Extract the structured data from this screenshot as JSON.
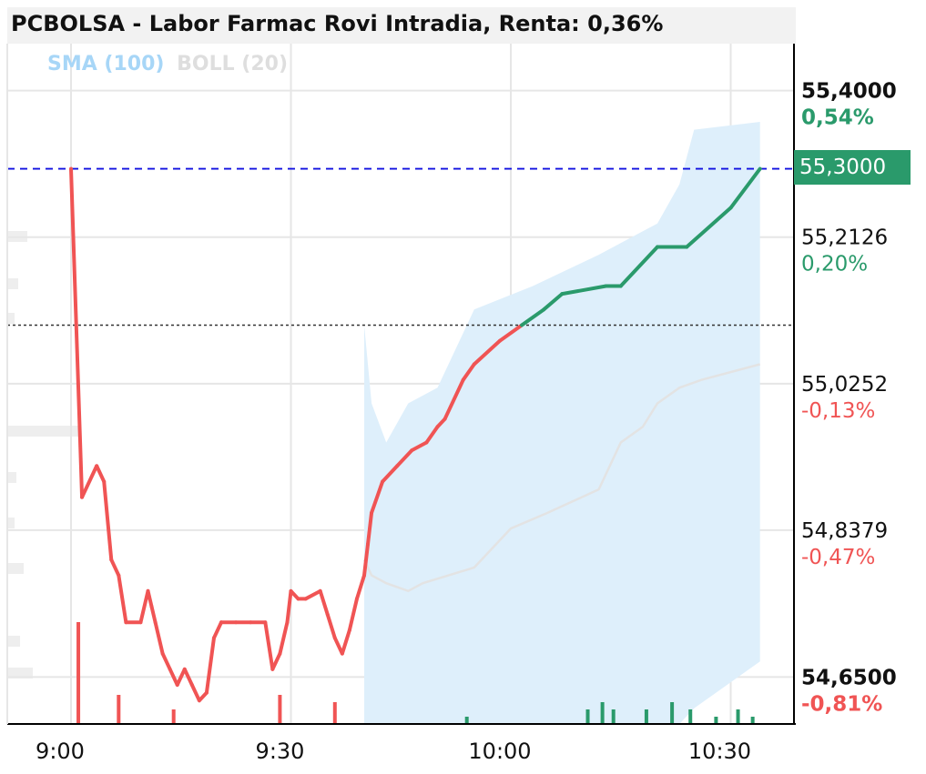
{
  "title": "PCBOLSA - Labor Farmac Rovi Intradia, Renta: 0,36%",
  "legend": {
    "sma": "SMA (100)",
    "boll": "BOLL (20)"
  },
  "colors": {
    "up": "#2a9a6b",
    "down": "#f05454",
    "band": "#deeffb",
    "sma": "#e3e3e3",
    "last_line": "#1010e0",
    "ref_line": "#333333"
  },
  "price_tag": "55,3000",
  "chart_data": {
    "type": "line",
    "title": "PCBOLSA - Labor Farmac Rovi Intradia, Renta: 0,36%",
    "x_ticks": [
      {
        "label": "9:00",
        "t": 0
      },
      {
        "label": "9:30",
        "t": 30
      },
      {
        "label": "10:00",
        "t": 60
      },
      {
        "label": "10:30",
        "t": 90
      }
    ],
    "xlim": [
      -8,
      98
    ],
    "ylim": [
      54.59,
      55.46
    ],
    "y_ticks": [
      {
        "value": 55.4,
        "label": "55,4000",
        "pct": "0,54%",
        "bold": true,
        "color": "#2a9a6b"
      },
      {
        "value": 55.2126,
        "label": "55,2126",
        "pct": "0,20%",
        "bold": false,
        "color": "#2a9a6b"
      },
      {
        "value": 55.0252,
        "label": "55,0252",
        "pct": "-0,13%",
        "bold": false,
        "color": "#f05454"
      },
      {
        "value": 54.8379,
        "label": "54,8379",
        "pct": "-0,47%",
        "bold": false,
        "color": "#f05454"
      },
      {
        "value": 54.65,
        "label": "54,6500",
        "pct": "-0,81%",
        "bold": true,
        "color": "#f05454"
      }
    ],
    "last_price": 55.3,
    "reference_price": 55.1,
    "series": [
      {
        "type": "line",
        "color_up": "#2a9a6b",
        "color_down": "#f05454",
        "x": [
          0,
          1.5,
          3.5,
          4.5,
          5.5,
          6.5,
          7.5,
          9.5,
          10.5,
          11,
          11.5,
          12.5,
          13.5,
          14.5,
          15.5,
          16.5,
          17.5,
          18.5,
          19.5,
          20.5,
          22.5,
          24.5,
          26.5,
          27.5,
          28.5,
          29.5,
          30,
          31,
          32,
          34,
          35,
          36,
          37,
          38,
          39,
          40,
          40.5,
          41,
          42.5,
          44.5,
          46.5,
          48.5,
          50,
          51,
          53.5,
          55,
          58.5,
          61.5,
          64.5,
          67,
          73,
          75,
          80,
          84,
          90,
          94
        ],
        "values": [
          55.3,
          54.88,
          54.92,
          54.9,
          54.8,
          54.78,
          54.72,
          54.72,
          54.76,
          54.74,
          54.72,
          54.68,
          54.66,
          54.64,
          54.66,
          54.64,
          54.62,
          54.63,
          54.7,
          54.72,
          54.72,
          54.72,
          54.72,
          54.66,
          54.68,
          54.72,
          54.76,
          54.75,
          54.75,
          54.76,
          54.73,
          54.7,
          54.68,
          54.71,
          54.75,
          54.78,
          54.82,
          54.86,
          54.9,
          54.92,
          54.94,
          54.95,
          54.97,
          54.98,
          55.03,
          55.05,
          55.08,
          55.1,
          55.12,
          55.14,
          55.15,
          55.15,
          55.2,
          55.2,
          55.25,
          55.3
        ]
      },
      {
        "type": "area",
        "name": "BOLL (20)",
        "x": [
          40,
          41,
          43,
          46,
          50,
          55,
          63,
          72,
          80,
          83,
          85,
          94
        ],
        "upper": [
          55.1,
          55.0,
          54.95,
          55.0,
          55.02,
          55.12,
          55.15,
          55.19,
          55.23,
          55.28,
          55.35,
          55.36
        ],
        "lower": [
          54.58,
          54.58,
          54.58,
          54.58,
          54.58,
          54.58,
          54.58,
          54.58,
          54.58,
          54.58,
          54.61,
          54.67
        ]
      },
      {
        "type": "line",
        "name": "SMA (100)",
        "x": [
          40,
          41,
          43,
          46,
          48,
          55,
          60,
          65,
          72,
          75,
          78,
          80,
          83,
          86,
          94
        ],
        "values": [
          54.8,
          54.78,
          54.77,
          54.76,
          54.77,
          54.79,
          54.84,
          54.86,
          54.89,
          54.95,
          54.97,
          55.0,
          55.02,
          55.03,
          55.05
        ]
      }
    ],
    "volume": {
      "x": [
        1,
        6.5,
        14,
        28.5,
        36,
        54,
        70.5,
        72.5,
        74,
        78.5,
        82,
        84.5,
        88,
        91,
        93
      ],
      "values": [
        14,
        4,
        2,
        4,
        3,
        1,
        2,
        3,
        2,
        2,
        3,
        2,
        1,
        2,
        1
      ],
      "colors": [
        "#f05454",
        "#f05454",
        "#f05454",
        "#f05454",
        "#f05454",
        "#2a9a6b",
        "#2a9a6b",
        "#2a9a6b",
        "#2a9a6b",
        "#2a9a6b",
        "#2a9a6b",
        "#2a9a6b",
        "#2a9a6b",
        "#2a9a6b",
        "#2a9a6b"
      ]
    },
    "grid": true
  }
}
